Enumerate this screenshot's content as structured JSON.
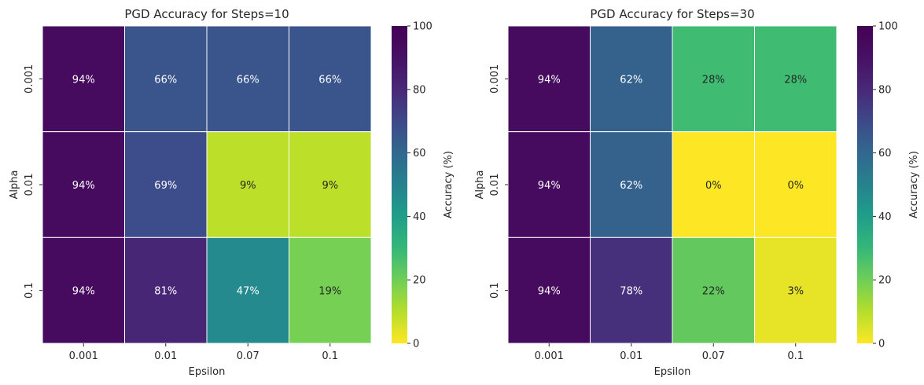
{
  "chart_data": [
    {
      "type": "heatmap",
      "title": "PGD Accuracy for Steps=10",
      "xlabel": "Epsilon",
      "ylabel": "Alpha",
      "x_categories": [
        "0.001",
        "0.01",
        "0.07",
        "0.1"
      ],
      "y_categories": [
        "0.001",
        "0.01",
        "0.1"
      ],
      "values": [
        [
          94,
          66,
          66,
          66
        ],
        [
          94,
          69,
          9,
          9
        ],
        [
          94,
          81,
          47,
          19
        ]
      ],
      "value_labels": [
        [
          "94%",
          "66%",
          "66%",
          "66%"
        ],
        [
          "94%",
          "69%",
          "9%",
          "9%"
        ],
        [
          "94%",
          "81%",
          "47%",
          "19%"
        ]
      ],
      "colorbar": {
        "label": "Accuracy (%)",
        "range": [
          0,
          100
        ],
        "ticks": [
          "0",
          "20",
          "40",
          "60",
          "80",
          "100"
        ],
        "colormap": "viridis_r"
      }
    },
    {
      "type": "heatmap",
      "title": "PGD Accuracy for Steps=30",
      "xlabel": "Epsilon",
      "ylabel": "Alpha",
      "x_categories": [
        "0.001",
        "0.01",
        "0.07",
        "0.1"
      ],
      "y_categories": [
        "0.001",
        "0.01",
        "0.1"
      ],
      "values": [
        [
          94,
          62,
          28,
          28
        ],
        [
          94,
          62,
          0,
          0
        ],
        [
          94,
          78,
          22,
          3
        ]
      ],
      "value_labels": [
        [
          "94%",
          "62%",
          "28%",
          "28%"
        ],
        [
          "94%",
          "62%",
          "0%",
          "0%"
        ],
        [
          "94%",
          "78%",
          "22%",
          "3%"
        ]
      ],
      "colorbar": {
        "label": "Accuracy (%)",
        "range": [
          0,
          100
        ],
        "ticks": [
          "0",
          "20",
          "40",
          "60",
          "80",
          "100"
        ],
        "colormap": "viridis_r"
      }
    }
  ]
}
